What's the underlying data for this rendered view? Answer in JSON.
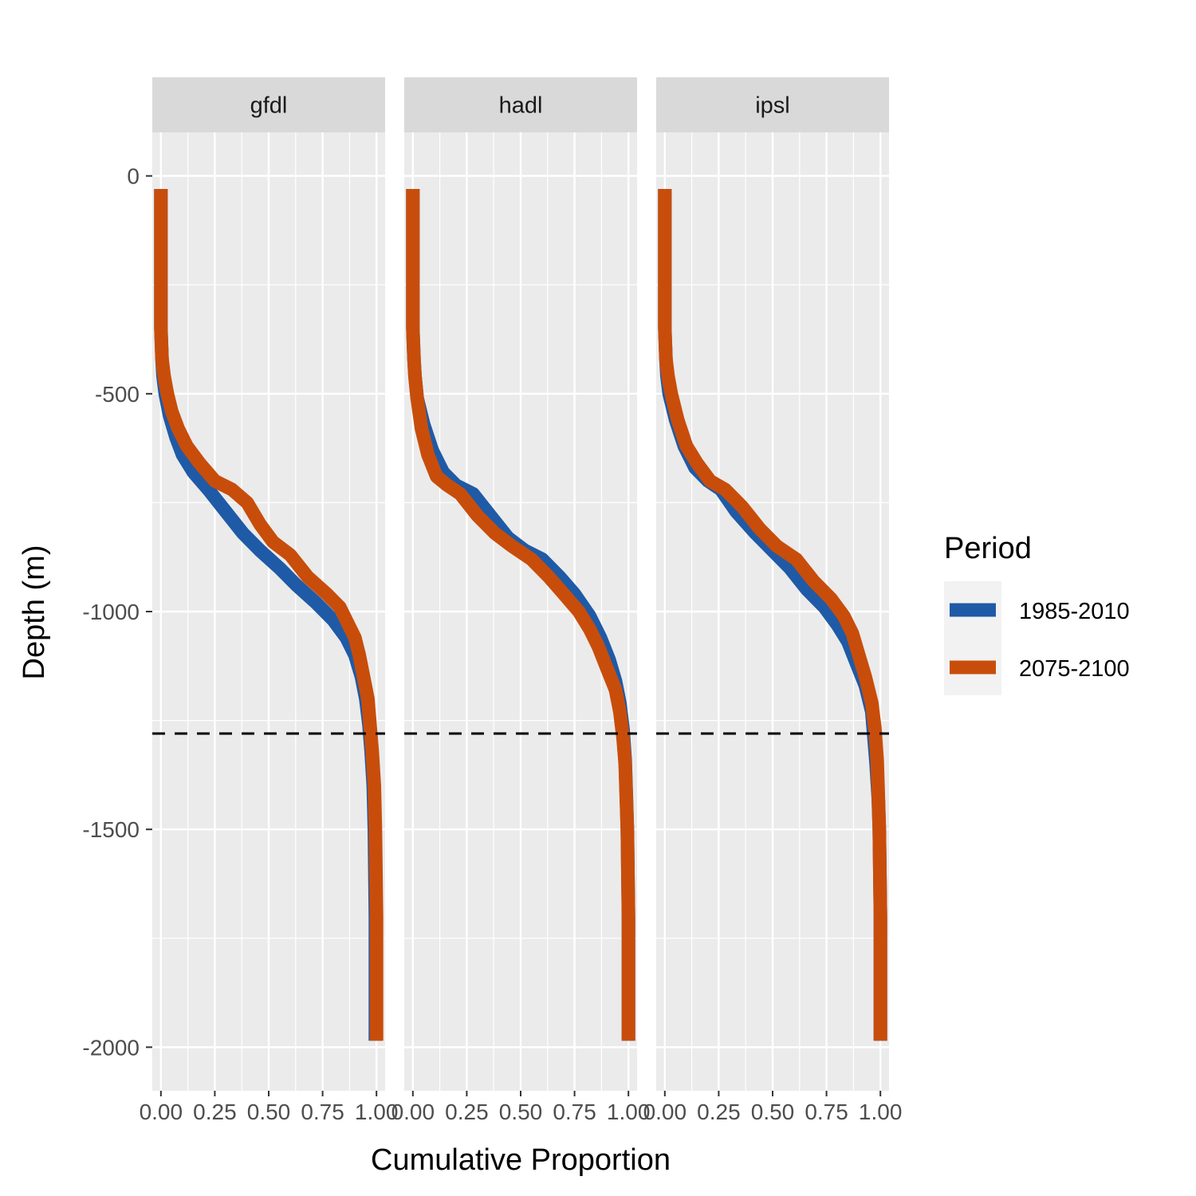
{
  "chart_data": {
    "type": "line",
    "facet_by": "model",
    "facets": [
      {
        "name": "gfdl",
        "series": [
          {
            "name": "1985-2010",
            "color": "#1f5aa6",
            "points": [
              [
                0.0,
                -30
              ],
              [
                0.0,
                -200
              ],
              [
                0.0,
                -350
              ],
              [
                0.005,
                -420
              ],
              [
                0.01,
                -460
              ],
              [
                0.02,
                -500
              ],
              [
                0.04,
                -550
              ],
              [
                0.07,
                -600
              ],
              [
                0.1,
                -640
              ],
              [
                0.15,
                -680
              ],
              [
                0.22,
                -720
              ],
              [
                0.3,
                -770
              ],
              [
                0.38,
                -820
              ],
              [
                0.46,
                -860
              ],
              [
                0.55,
                -900
              ],
              [
                0.63,
                -940
              ],
              [
                0.72,
                -980
              ],
              [
                0.8,
                -1020
              ],
              [
                0.86,
                -1060
              ],
              [
                0.9,
                -1100
              ],
              [
                0.93,
                -1150
              ],
              [
                0.95,
                -1200
              ],
              [
                0.965,
                -1260
              ],
              [
                0.975,
                -1320
              ],
              [
                0.985,
                -1400
              ],
              [
                0.99,
                -1500
              ],
              [
                0.995,
                -1700
              ],
              [
                0.995,
                -1985
              ]
            ]
          },
          {
            "name": "2075-2100",
            "color": "#c84d0b",
            "points": [
              [
                0.0,
                -30
              ],
              [
                0.0,
                -200
              ],
              [
                0.0,
                -350
              ],
              [
                0.005,
                -420
              ],
              [
                0.015,
                -460
              ],
              [
                0.03,
                -500
              ],
              [
                0.05,
                -540
              ],
              [
                0.08,
                -580
              ],
              [
                0.12,
                -620
              ],
              [
                0.18,
                -660
              ],
              [
                0.25,
                -700
              ],
              [
                0.33,
                -720
              ],
              [
                0.4,
                -750
              ],
              [
                0.46,
                -800
              ],
              [
                0.52,
                -840
              ],
              [
                0.6,
                -870
              ],
              [
                0.68,
                -920
              ],
              [
                0.77,
                -960
              ],
              [
                0.83,
                -990
              ],
              [
                0.87,
                -1030
              ],
              [
                0.9,
                -1060
              ],
              [
                0.92,
                -1100
              ],
              [
                0.94,
                -1150
              ],
              [
                0.96,
                -1200
              ],
              [
                0.97,
                -1260
              ],
              [
                0.98,
                -1320
              ],
              [
                0.99,
                -1400
              ],
              [
                0.995,
                -1500
              ],
              [
                1.0,
                -1700
              ],
              [
                1.0,
                -1985
              ]
            ]
          }
        ]
      },
      {
        "name": "hadl",
        "series": [
          {
            "name": "1985-2010",
            "color": "#1f5aa6",
            "points": [
              [
                0.0,
                -30
              ],
              [
                0.0,
                -200
              ],
              [
                0.0,
                -350
              ],
              [
                0.005,
                -420
              ],
              [
                0.01,
                -460
              ],
              [
                0.02,
                -510
              ],
              [
                0.05,
                -570
              ],
              [
                0.09,
                -630
              ],
              [
                0.14,
                -680
              ],
              [
                0.2,
                -710
              ],
              [
                0.28,
                -730
              ],
              [
                0.36,
                -780
              ],
              [
                0.44,
                -830
              ],
              [
                0.52,
                -860
              ],
              [
                0.6,
                -880
              ],
              [
                0.68,
                -920
              ],
              [
                0.75,
                -960
              ],
              [
                0.82,
                -1010
              ],
              [
                0.87,
                -1060
              ],
              [
                0.91,
                -1110
              ],
              [
                0.94,
                -1160
              ],
              [
                0.96,
                -1210
              ],
              [
                0.975,
                -1270
              ],
              [
                0.985,
                -1340
              ],
              [
                0.99,
                -1420
              ],
              [
                0.995,
                -1500
              ],
              [
                1.0,
                -1700
              ],
              [
                1.0,
                -1985
              ]
            ]
          },
          {
            "name": "2075-2100",
            "color": "#c84d0b",
            "points": [
              [
                0.0,
                -30
              ],
              [
                0.0,
                -200
              ],
              [
                0.0,
                -350
              ],
              [
                0.005,
                -420
              ],
              [
                0.01,
                -460
              ],
              [
                0.02,
                -510
              ],
              [
                0.04,
                -580
              ],
              [
                0.07,
                -640
              ],
              [
                0.11,
                -690
              ],
              [
                0.16,
                -710
              ],
              [
                0.22,
                -730
              ],
              [
                0.3,
                -780
              ],
              [
                0.38,
                -820
              ],
              [
                0.46,
                -850
              ],
              [
                0.55,
                -880
              ],
              [
                0.63,
                -920
              ],
              [
                0.7,
                -960
              ],
              [
                0.77,
                -1000
              ],
              [
                0.82,
                -1040
              ],
              [
                0.86,
                -1080
              ],
              [
                0.9,
                -1130
              ],
              [
                0.94,
                -1180
              ],
              [
                0.96,
                -1230
              ],
              [
                0.975,
                -1290
              ],
              [
                0.985,
                -1350
              ],
              [
                0.99,
                -1430
              ],
              [
                0.995,
                -1500
              ],
              [
                1.0,
                -1700
              ],
              [
                1.0,
                -1985
              ]
            ]
          }
        ]
      },
      {
        "name": "ipsl",
        "series": [
          {
            "name": "1985-2010",
            "color": "#1f5aa6",
            "points": [
              [
                0.0,
                -30
              ],
              [
                0.0,
                -200
              ],
              [
                0.0,
                -350
              ],
              [
                0.005,
                -420
              ],
              [
                0.01,
                -460
              ],
              [
                0.02,
                -500
              ],
              [
                0.05,
                -560
              ],
              [
                0.09,
                -620
              ],
              [
                0.14,
                -670
              ],
              [
                0.2,
                -700
              ],
              [
                0.26,
                -720
              ],
              [
                0.33,
                -770
              ],
              [
                0.42,
                -820
              ],
              [
                0.5,
                -860
              ],
              [
                0.58,
                -900
              ],
              [
                0.66,
                -950
              ],
              [
                0.74,
                -990
              ],
              [
                0.8,
                -1030
              ],
              [
                0.85,
                -1070
              ],
              [
                0.89,
                -1120
              ],
              [
                0.93,
                -1170
              ],
              [
                0.96,
                -1230
              ],
              [
                0.97,
                -1290
              ],
              [
                0.98,
                -1350
              ],
              [
                0.99,
                -1430
              ],
              [
                0.995,
                -1500
              ],
              [
                1.0,
                -1700
              ],
              [
                1.0,
                -1985
              ]
            ]
          },
          {
            "name": "2075-2100",
            "color": "#c84d0b",
            "points": [
              [
                0.0,
                -30
              ],
              [
                0.0,
                -200
              ],
              [
                0.0,
                -350
              ],
              [
                0.005,
                -420
              ],
              [
                0.015,
                -460
              ],
              [
                0.03,
                -500
              ],
              [
                0.06,
                -560
              ],
              [
                0.1,
                -620
              ],
              [
                0.15,
                -660
              ],
              [
                0.21,
                -700
              ],
              [
                0.28,
                -720
              ],
              [
                0.36,
                -760
              ],
              [
                0.44,
                -810
              ],
              [
                0.52,
                -850
              ],
              [
                0.61,
                -880
              ],
              [
                0.69,
                -930
              ],
              [
                0.77,
                -970
              ],
              [
                0.83,
                -1010
              ],
              [
                0.87,
                -1050
              ],
              [
                0.9,
                -1100
              ],
              [
                0.93,
                -1150
              ],
              [
                0.96,
                -1210
              ],
              [
                0.975,
                -1270
              ],
              [
                0.985,
                -1340
              ],
              [
                0.99,
                -1420
              ],
              [
                0.995,
                -1500
              ],
              [
                1.0,
                -1700
              ],
              [
                1.0,
                -1985
              ]
            ]
          }
        ]
      }
    ],
    "reference_line": {
      "y": -1280,
      "style": "dashed",
      "color": "#000000"
    },
    "xlabel": "Cumulative Proportion",
    "ylabel": "Depth (m)",
    "xlim": [
      -0.04,
      1.04
    ],
    "ylim": [
      -2100,
      100
    ],
    "x_ticks": [
      0.0,
      0.25,
      0.5,
      0.75,
      1.0
    ],
    "x_tick_labels": [
      "0.00",
      "0.25",
      "0.50",
      "0.75",
      "1.00"
    ],
    "y_ticks": [
      0,
      -500,
      -1000,
      -1500,
      -2000
    ],
    "y_tick_labels": [
      "0",
      "-500",
      "-1000",
      "-1500",
      "-2000"
    ],
    "grid": true,
    "legend": {
      "title": "Period",
      "placement": "right",
      "entries": [
        {
          "label": "1985-2010",
          "color": "#1f5aa6"
        },
        {
          "label": "2075-2100",
          "color": "#c84d0b"
        }
      ]
    }
  }
}
